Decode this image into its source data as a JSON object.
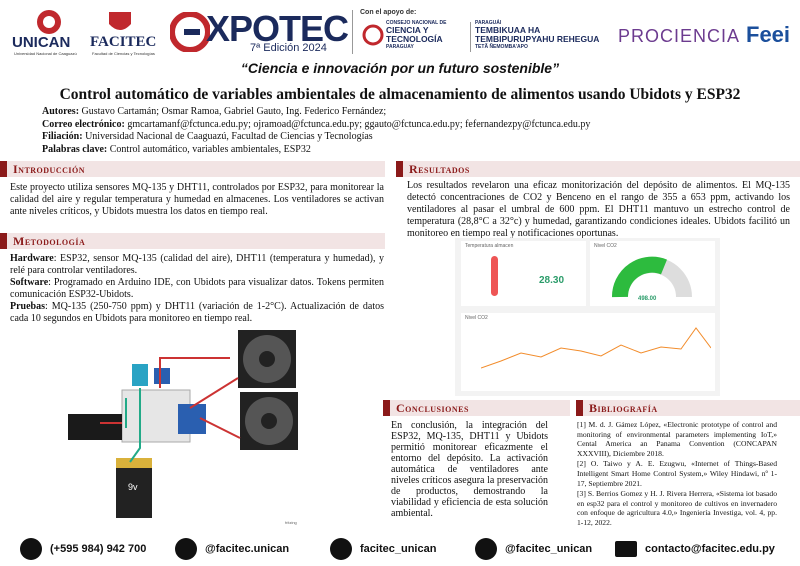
{
  "header": {
    "unican": {
      "name": "UNICAN",
      "sub": "Universidad Nacional de Caaguazú"
    },
    "facitec": {
      "name": "FACITEC",
      "sub": "Facultad de Ciencias y Tecnologías"
    },
    "expotec": {
      "name": "XPOTEC",
      "edition": "7ª Edición 2024"
    },
    "support_label": "Con el apoyo de:",
    "conacyt": [
      "CONSEJO NACIONAL DE",
      "CIENCIA Y",
      "TECNOLOGÍA",
      "PARAGUAY"
    ],
    "tembikuaa": [
      "PARAGUÁI",
      "TEMBIKUAA HA",
      "TEMBIPURUPYAHU REHEGUA",
      "TETÃ ÑEMOMBA'APO"
    ],
    "prociencia": "PROCIENCIA",
    "feei": "Feei",
    "slogan": "“Ciencia e innovación por un futuro sostenible”"
  },
  "title": "Control automático de variables ambientales de almacenamiento de alimentos usando Ubidots y ESP32",
  "info": [
    {
      "label": "Autores:",
      "text": "Gustavo Cartamán; Osmar Ramoa, Gabriel Gauto, Ing. Federico Fernández;"
    },
    {
      "label": "Correo electrónico:",
      "text": "gmcartamanf@fctunca.edu.py; ojramoad@fctunca.edu.py; ggauto@fctunca.edu.py; fefernandezpy@fctunca.edu.py"
    },
    {
      "label": "Filiación:",
      "text": "Universidad Nacional de Caaguazú, Facultad de Ciencias y Tecnologías"
    },
    {
      "label": "Palabras clave:",
      "text": "Control automático, variables ambientales, ESP32"
    }
  ],
  "introduccion": {
    "heading": "Introducción",
    "text": "Este proyecto utiliza sensores MQ-135 y DHT11, controlados por ESP32, para monitorear la calidad del aire y regular temperatura y humedad en almacenes. Los ventiladores se activan ante niveles críticos, y Ubidots muestra los datos en tiempo real."
  },
  "metodologia": {
    "heading": "Metodología",
    "items": [
      {
        "label": "Hardware",
        "text": ": ESP32, sensor MQ-135 (calidad del aire), DHT11 (temperatura y humedad), y relé para controlar ventiladores."
      },
      {
        "label": "Software",
        "text": ": Programado en Arduino IDE, con Ubidots para visualizar datos. Tokens permiten comunicación ESP32-Ubidots."
      },
      {
        "label": "Pruebas",
        "text": ": MQ-135 (250-750 ppm) y DHT11 (variación de 1-2°C). Actualización de datos cada 10 segundos en Ubidots para monitoreo en tiempo real."
      }
    ],
    "battery": "9v",
    "credit": "fritzing"
  },
  "resultados": {
    "heading": "Resultados",
    "text": "Los resultados revelaron una eficaz monitorización del depósito de alimentos. El MQ-135 detectó concentraciones de CO2 y Benceno en el rango de 355 a 653 ppm, activando los ventiladores al pasar el umbral de 600 ppm. El DHT11 mantuvo un estrecho control de temperatura (28,8°C a 32°c) y humedad, garantizando condiciones ideales. Ubidots facilitó un monitoreo en tiempo real y notificaciones oportunas.",
    "dashboard": {
      "temp_title": "Temperatura almacen",
      "temp_value": "28.30",
      "co2_title": "Nivel CO2",
      "co2_value": "498.00",
      "chart_title": "Nivel CO2"
    }
  },
  "conclusiones": {
    "heading": "Conclusiones",
    "text": "En conclusión, la integración del ESP32, MQ-135, DHT11 y Ubidots permitió monitorear eficazmente el entorno del depósito. La activación automática de ventiladores ante niveles críticos asegura la preservación de productos, demostrando la viabilidad y eficiencia de esta solución ambiental."
  },
  "bibliografia": {
    "heading": "Bibliografía",
    "refs": [
      "[1] M. d. J. Gámez López, «Electronic prototype of control and monitoring of environmental parameters implementing IoT,» Cental America an Panama Convention (CONCAPAN XXXVIII), Diciembre 2018.",
      "[2] O. Taiwo y A. E. Ezugwu, «Internet of Things-Based Intelligent Smart Home Control System,» Wiley Hindawi, nº 1-17, Septiembre 2021.",
      "[3] S. Berrios Gomez y H. J. Rivera Herrera, «Sistema iot basado en esp32 para el control y monitoreo de cultivos en invernadero con enfoque de agricultura 4.0,» Ingeniería Investiga, vol. 4, pp. 1-12, 2022."
    ]
  },
  "footer": {
    "phone": "(+595 984) 942 700",
    "facebook": "@facitec.unican",
    "instagram": "facitec_unican",
    "twitter": "@facitec_unican",
    "email": "contacto@facitec.edu.py"
  }
}
